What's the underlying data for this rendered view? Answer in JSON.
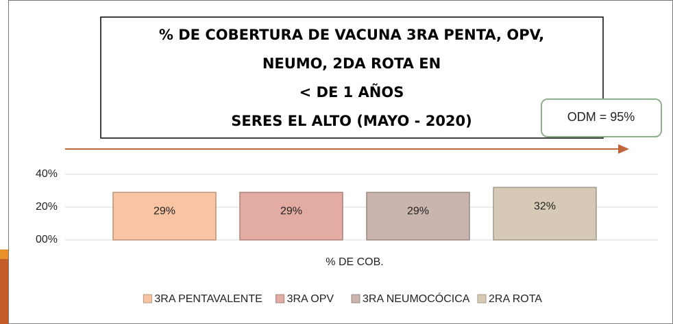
{
  "chart_data": {
    "type": "bar",
    "title": [
      "% DE COBERTURA DE VACUNA 3RA PENTA, OPV,",
      "NEUMO, 2DA ROTA EN",
      "< DE 1 AÑOS",
      "SERES EL ALTO (MAYO - 2020)"
    ],
    "annotation": "ODM = 95%",
    "categories": [
      "% DE COB."
    ],
    "series": [
      {
        "name": "3RA PENTAVALENTE",
        "color": "#f8c4a4",
        "values": [
          29
        ],
        "value_labels": [
          "29%"
        ]
      },
      {
        "name": "3RA OPV",
        "color": "#e2aca2",
        "values": [
          29
        ],
        "value_labels": [
          "29%"
        ]
      },
      {
        "name": "3RA NEUMOCÓCICA",
        "color": "#c9b5ad",
        "values": [
          29
        ],
        "value_labels": [
          "29%"
        ]
      },
      {
        "name": "2RA ROTA",
        "color": "#d6cab6",
        "values": [
          32
        ],
        "value_labels": [
          "32%"
        ]
      }
    ],
    "ylim": [
      0,
      40
    ],
    "yticks": [
      {
        "value": 0,
        "label": "00%"
      },
      {
        "value": 20,
        "label": "20%"
      },
      {
        "value": 40,
        "label": "40%"
      }
    ],
    "grid": true,
    "legend": "bottom"
  }
}
